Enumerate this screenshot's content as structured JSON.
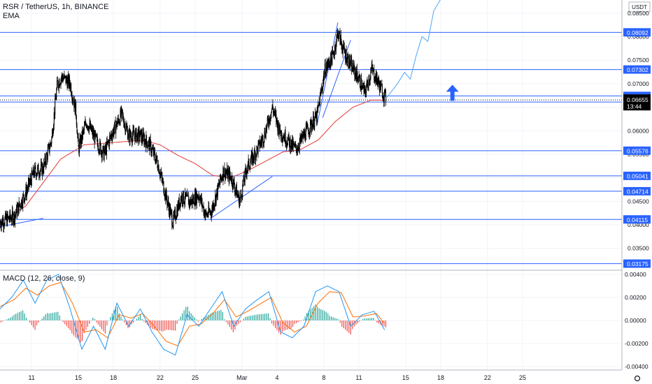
{
  "header": {
    "symbol_line": "RSR / TetherUS, 1h, BINANCE",
    "indicator": "EMA",
    "currency": "USDT"
  },
  "macd_legend": "MACD (12, 26, close, 9)",
  "colors": {
    "candle": "#000000",
    "hline": "#2962ff",
    "ema": "#e53935",
    "macd_line": "#2196f3",
    "signal_line": "#ff6d00",
    "hist_pos": "#26a69a",
    "hist_neg": "#ef5350",
    "arrow": "#2962ff",
    "current_price_bg": "#000000",
    "grid": "#f0f3fa"
  },
  "chart_data": [
    {
      "type": "candlestick",
      "symbol": "RSR / TetherUS",
      "timeframe": "1h",
      "exchange": "BINANCE",
      "price_ticks": [
        "0.08500",
        "0.08000",
        "0.07500",
        "0.07000",
        "0.06500",
        "0.06000",
        "0.05500",
        "0.05000",
        "0.04500",
        "0.04000",
        "0.03500"
      ],
      "price_tick_values": [
        0.085,
        0.08,
        0.075,
        0.07,
        0.065,
        0.06,
        0.055,
        0.05,
        0.045,
        0.04,
        0.035
      ],
      "ylim": [
        0.0305,
        0.0878
      ],
      "x_ticks": [
        "11",
        "15",
        "18",
        "22",
        "25",
        "Mar",
        "4",
        "8",
        "11",
        "15",
        "18",
        "22",
        "25"
      ],
      "x_tick_days": [
        11,
        15,
        18,
        22,
        25,
        29,
        32,
        36,
        39,
        43,
        46,
        50,
        53
      ],
      "xlim_days": [
        8.3,
        61.5
      ],
      "horizontal_levels": [
        {
          "label": "0.08092",
          "value": 0.08092
        },
        {
          "label": "0.07302",
          "value": 0.07302
        },
        {
          "label": "0.06741",
          "value": 0.06741
        },
        {
          "label": "0.06611",
          "value": 0.06611
        },
        {
          "label": "0.05576",
          "value": 0.05576
        },
        {
          "label": "0.05041",
          "value": 0.05041
        },
        {
          "label": "0.04714",
          "value": 0.04714
        },
        {
          "label": "0.04115",
          "value": 0.04115
        },
        {
          "label": "0.03175",
          "value": 0.03175
        }
      ],
      "current_price": {
        "label": "0.06655",
        "value": 0.06655,
        "countdown": "13:44"
      },
      "price_waypoints": [
        [
          8.3,
          0.0406
        ],
        [
          9.5,
          0.0418
        ],
        [
          10.5,
          0.0468
        ],
        [
          11.2,
          0.0512
        ],
        [
          12.0,
          0.052
        ],
        [
          12.7,
          0.058
        ],
        [
          13.2,
          0.07
        ],
        [
          13.6,
          0.0715
        ],
        [
          14.3,
          0.07
        ],
        [
          14.8,
          0.064
        ],
        [
          15.0,
          0.056
        ],
        [
          15.7,
          0.062
        ],
        [
          16.5,
          0.058
        ],
        [
          17.2,
          0.055
        ],
        [
          17.8,
          0.059
        ],
        [
          18.7,
          0.0635
        ],
        [
          19.3,
          0.059
        ],
        [
          20.3,
          0.059
        ],
        [
          21.1,
          0.057
        ],
        [
          21.8,
          0.053
        ],
        [
          22.6,
          0.045
        ],
        [
          23.1,
          0.0405
        ],
        [
          23.8,
          0.046
        ],
        [
          24.6,
          0.0448
        ],
        [
          25.3,
          0.0465
        ],
        [
          25.9,
          0.042
        ],
        [
          26.4,
          0.043
        ],
        [
          27.4,
          0.0515
        ],
        [
          28.1,
          0.05
        ],
        [
          28.8,
          0.045
        ],
        [
          29.4,
          0.052
        ],
        [
          30.3,
          0.056
        ],
        [
          30.9,
          0.059
        ],
        [
          31.6,
          0.065
        ],
        [
          32.2,
          0.06
        ],
        [
          32.9,
          0.058
        ],
        [
          33.6,
          0.056
        ],
        [
          34.3,
          0.059
        ],
        [
          35.4,
          0.063
        ],
        [
          36.1,
          0.073
        ],
        [
          36.8,
          0.076
        ],
        [
          37.2,
          0.081
        ],
        [
          37.7,
          0.077
        ],
        [
          38.3,
          0.074
        ],
        [
          39.0,
          0.071
        ],
        [
          39.5,
          0.068
        ],
        [
          40.1,
          0.073
        ],
        [
          40.7,
          0.07
        ],
        [
          41.3,
          0.0668
        ]
      ],
      "ema_waypoints": [
        [
          8.3,
          0.0405
        ],
        [
          10.5,
          0.044
        ],
        [
          12.0,
          0.049
        ],
        [
          13.5,
          0.054
        ],
        [
          15.5,
          0.057
        ],
        [
          18.0,
          0.0575
        ],
        [
          20.5,
          0.058
        ],
        [
          22.0,
          0.057
        ],
        [
          23.5,
          0.0548
        ],
        [
          25.0,
          0.053
        ],
        [
          26.5,
          0.0505
        ],
        [
          28.0,
          0.05
        ],
        [
          29.5,
          0.0515
        ],
        [
          31.0,
          0.0535
        ],
        [
          32.5,
          0.0555
        ],
        [
          34.0,
          0.056
        ],
        [
          35.5,
          0.058
        ],
        [
          37.0,
          0.062
        ],
        [
          38.5,
          0.065
        ],
        [
          40.0,
          0.0665
        ],
        [
          41.3,
          0.0665
        ]
      ],
      "trendlines": [
        {
          "points": [
            [
              8.3,
              0.0396
            ],
            [
              12.0,
              0.0414
            ]
          ]
        },
        {
          "points": [
            [
              26.4,
              0.0415
            ],
            [
              31.6,
              0.0503
            ]
          ]
        },
        {
          "points": [
            [
              35.4,
              0.061
            ],
            [
              37.2,
              0.083
            ]
          ]
        },
        {
          "points": [
            [
              35.9,
              0.0628
            ],
            [
              38.3,
              0.0793
            ]
          ]
        }
      ],
      "projection": [
        [
          41.3,
          0.0668
        ],
        [
          42.3,
          0.07
        ],
        [
          42.9,
          0.0724
        ],
        [
          43.4,
          0.071
        ],
        [
          43.9,
          0.076
        ],
        [
          44.4,
          0.08
        ],
        [
          44.9,
          0.079
        ],
        [
          45.4,
          0.0855
        ],
        [
          46.0,
          0.088
        ]
      ],
      "arrow": {
        "day": 47.0,
        "value": 0.068,
        "direction": "up"
      }
    },
    {
      "type": "macd",
      "title": "MACD (12, 26, close, 9)",
      "ticks": [
        "0.00400",
        "0.00200",
        "0.00000",
        "-0.00200",
        "-0.00400"
      ],
      "tick_values": [
        0.004,
        0.002,
        0.0,
        -0.002,
        -0.004
      ],
      "ylim": [
        -0.0043,
        0.0043
      ],
      "macd_waypoints": [
        [
          8.3,
          0.001
        ],
        [
          9.3,
          0.002
        ],
        [
          10.3,
          0.0035
        ],
        [
          11.3,
          0.0015
        ],
        [
          12.3,
          0.0035
        ],
        [
          13.3,
          0.004
        ],
        [
          14.3,
          0.001
        ],
        [
          15.3,
          -0.0025
        ],
        [
          16.3,
          -0.0005
        ],
        [
          17.3,
          -0.0025
        ],
        [
          18.3,
          0.0015
        ],
        [
          19.3,
          -0.0005
        ],
        [
          20.3,
          0.001
        ],
        [
          21.3,
          -0.001
        ],
        [
          22.3,
          -0.0025
        ],
        [
          23.3,
          -0.003
        ],
        [
          24.3,
          0.0005
        ],
        [
          25.3,
          -0.0005
        ],
        [
          26.3,
          0.001
        ],
        [
          27.3,
          0.0025
        ],
        [
          28.3,
          -0.0005
        ],
        [
          29.3,
          0.001
        ],
        [
          30.3,
          0.0018
        ],
        [
          31.3,
          0.0025
        ],
        [
          32.3,
          -0.001
        ],
        [
          33.3,
          -0.0015
        ],
        [
          34.3,
          -0.0005
        ],
        [
          35.3,
          0.0025
        ],
        [
          36.3,
          0.003
        ],
        [
          37.3,
          0.0025
        ],
        [
          38.3,
          -0.0005
        ],
        [
          39.3,
          0.0005
        ],
        [
          40.3,
          0.0008
        ],
        [
          41.3,
          -0.001
        ]
      ],
      "signal_waypoints": [
        [
          8.3,
          0.0012
        ],
        [
          9.5,
          0.0018
        ],
        [
          10.5,
          0.0028
        ],
        [
          11.5,
          0.0022
        ],
        [
          12.5,
          0.003
        ],
        [
          13.5,
          0.0033
        ],
        [
          14.5,
          0.0015
        ],
        [
          15.5,
          -0.001
        ],
        [
          16.5,
          -0.0008
        ],
        [
          17.5,
          -0.0015
        ],
        [
          18.5,
          0.0005
        ],
        [
          19.5,
          0.0002
        ],
        [
          20.5,
          0.0006
        ],
        [
          21.5,
          -0.0005
        ],
        [
          22.5,
          -0.0018
        ],
        [
          23.5,
          -0.0022
        ],
        [
          24.5,
          -0.0005
        ],
        [
          25.5,
          -0.0003
        ],
        [
          26.5,
          0.0006
        ],
        [
          27.5,
          0.0018
        ],
        [
          28.5,
          0.0003
        ],
        [
          29.5,
          0.0008
        ],
        [
          30.5,
          0.0014
        ],
        [
          31.5,
          0.002
        ],
        [
          32.5,
          -0.0002
        ],
        [
          33.5,
          -0.001
        ],
        [
          34.5,
          -0.0005
        ],
        [
          35.5,
          0.0015
        ],
        [
          36.5,
          0.0025
        ],
        [
          37.5,
          0.0024
        ],
        [
          38.5,
          0.0003
        ],
        [
          39.5,
          0.0004
        ],
        [
          40.5,
          0.0006
        ],
        [
          41.3,
          -0.0004
        ]
      ]
    }
  ]
}
